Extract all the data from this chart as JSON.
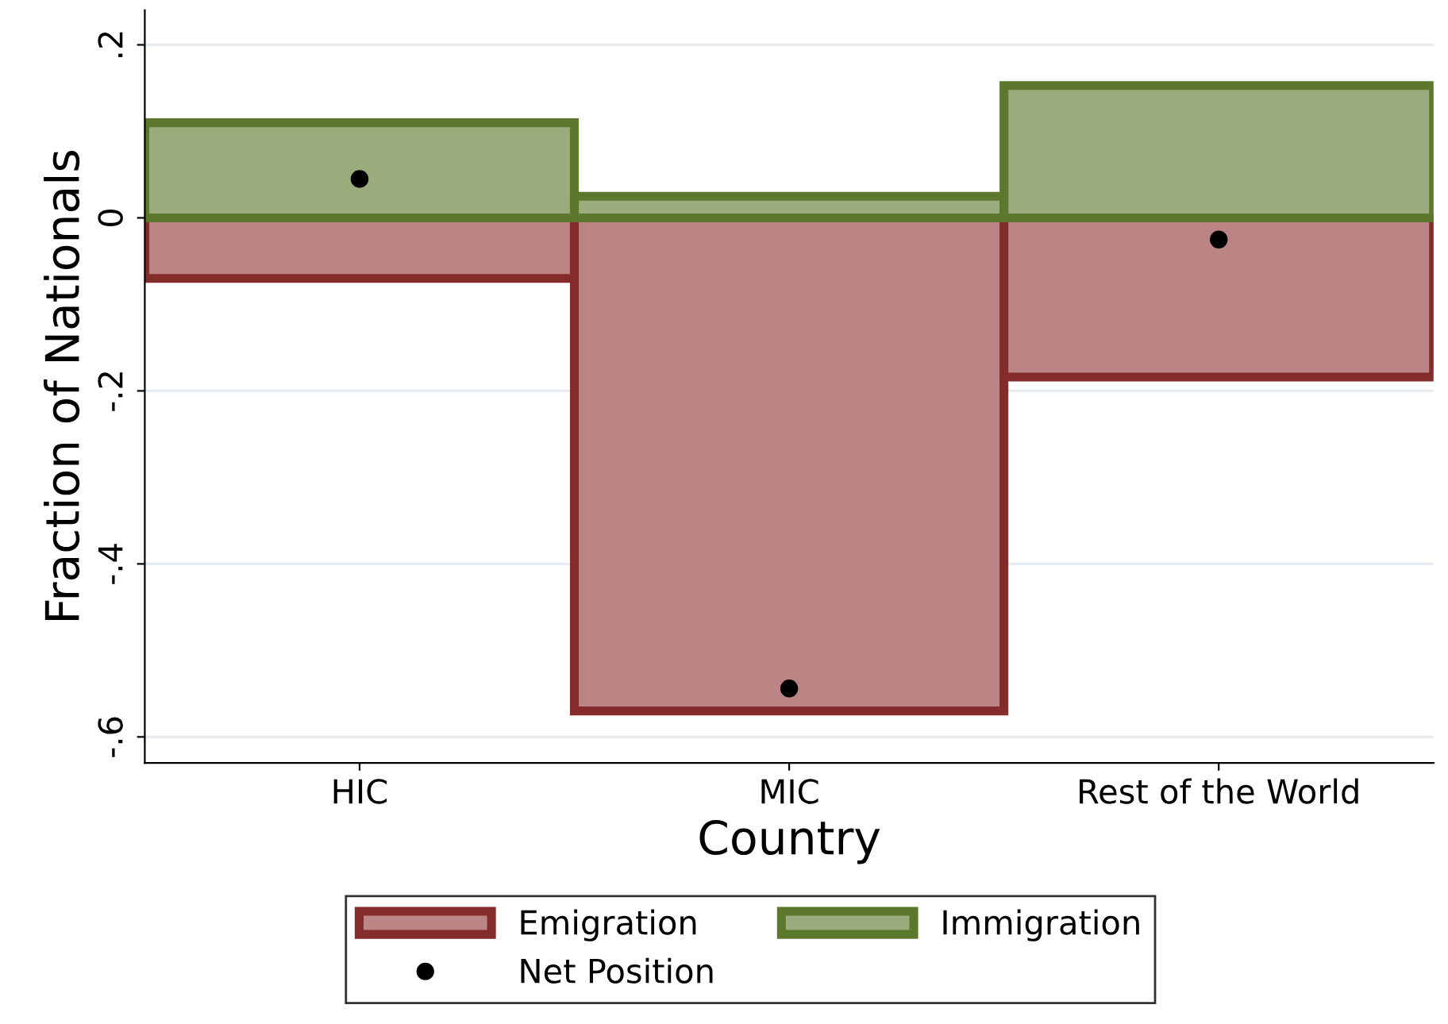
{
  "chart_data": {
    "type": "bar",
    "xlabel": "Country",
    "ylabel": "Fraction of Nationals",
    "categories": [
      "HIC",
      "MIC",
      "Rest of the World"
    ],
    "series": [
      {
        "name": "Emigration",
        "color": "#bc8585",
        "values": [
          -0.07,
          -0.57,
          -0.184
        ]
      },
      {
        "name": "Immigration",
        "color": "#9aab7c",
        "values": [
          0.11,
          0.025,
          0.153
        ]
      },
      {
        "name": "Net Position",
        "type": "scatter",
        "color": "#000000",
        "x": [
          "HIC",
          "MIC",
          "Rest of the World"
        ],
        "values": [
          0.045,
          -0.544,
          -0.025
        ]
      }
    ],
    "ylim": [
      -0.63,
      0.24
    ],
    "yticks": [
      {
        "value": 0.2,
        "label": ".2"
      },
      {
        "value": 0,
        "label": "0"
      },
      {
        "value": -0.2,
        "label": "-.2"
      },
      {
        "value": -0.4,
        "label": "-.4"
      },
      {
        "value": -0.6,
        "label": "-.6"
      }
    ],
    "stacked": true,
    "grid": "y",
    "legend": "bottom",
    "marker": "circle"
  }
}
